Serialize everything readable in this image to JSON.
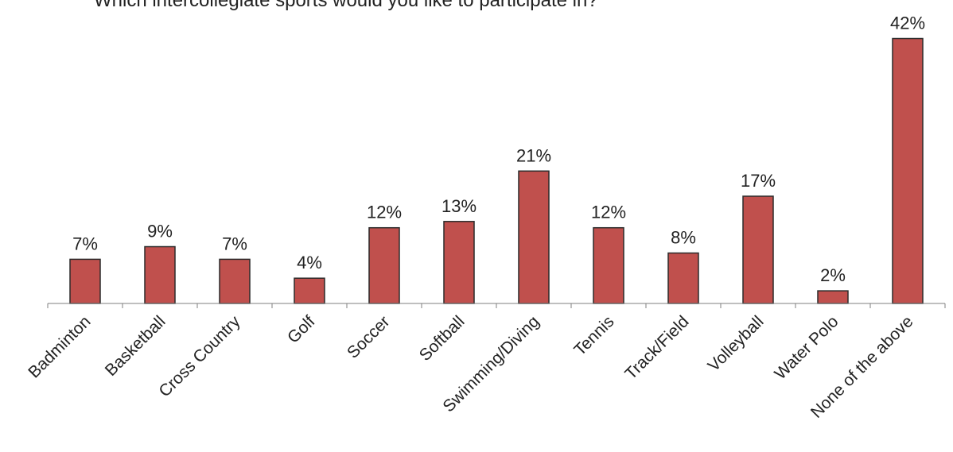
{
  "chart_data": {
    "type": "bar",
    "title": "Which intercollegiate sports would you like to participate in?",
    "categories": [
      "Badminton",
      "Basketball",
      "Cross Country",
      "Golf",
      "Soccer",
      "Softball",
      "Swimming/Diving",
      "Tennis",
      "Track/Field",
      "Volleyball",
      "Water Polo",
      "None of the above"
    ],
    "values": [
      7,
      9,
      7,
      4,
      12,
      13,
      21,
      12,
      8,
      17,
      2,
      42
    ],
    "data_labels": [
      "7%",
      "9%",
      "7%",
      "4%",
      "12%",
      "13%",
      "21%",
      "12%",
      "8%",
      "17%",
      "2%",
      "42%"
    ],
    "value_unit": "%",
    "xlabel": "",
    "ylabel": "",
    "ylim": [
      0,
      45
    ],
    "grid": false,
    "legend": "none",
    "colors": {
      "bar_fill": "#c0504d",
      "bar_stroke": "#2b2b2b",
      "axis": "#7f7f7f"
    }
  }
}
